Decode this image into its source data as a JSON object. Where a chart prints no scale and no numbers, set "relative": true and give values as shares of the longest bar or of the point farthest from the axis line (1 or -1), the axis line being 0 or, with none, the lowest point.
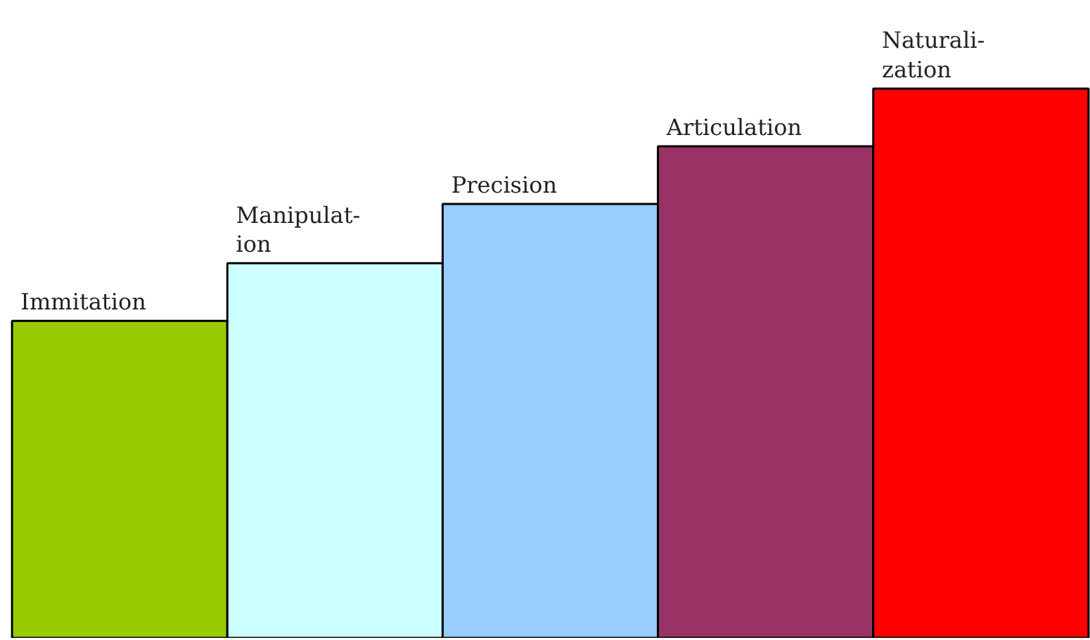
{
  "chart_data": {
    "type": "bar",
    "relative": true,
    "categories": [
      "Immitation",
      "Manipulat-\nion",
      "Precision",
      "Articulation",
      "Naturali-\nzation"
    ],
    "values": [
      0.577,
      0.682,
      0.79,
      0.895,
      1
    ],
    "colors": [
      "#99cc00",
      "#ccffff",
      "#99ccff",
      "#993366",
      "#ff0000"
    ]
  }
}
